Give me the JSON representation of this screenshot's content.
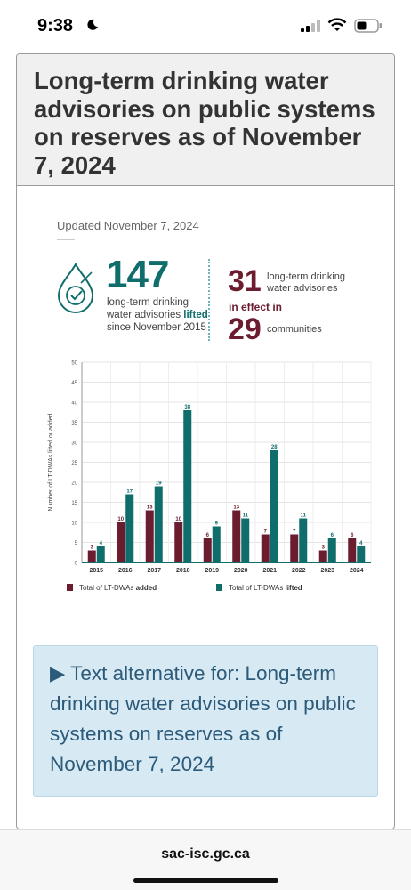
{
  "status": {
    "time": "9:38"
  },
  "card": {
    "title": "Long-term drinking water advisories on public systems on reserves as of November 7, 2024",
    "updated": "Updated November 7, 2024"
  },
  "stats": {
    "lifted_number": "147",
    "lifted_desc_1": "long-term drinking water advisories",
    "lifted_word": "lifted",
    "lifted_desc_2": "since November 2015",
    "effect_number": "31",
    "effect_desc": "long-term drinking water advisories",
    "in_effect": "in effect in",
    "communities_number": "29",
    "communities_word": "communities"
  },
  "chart_data": {
    "type": "bar",
    "ylabel": "Number of LT-DWAs lifted or added",
    "ylim": [
      0,
      50
    ],
    "yticks": [
      0,
      5,
      10,
      15,
      20,
      25,
      30,
      35,
      40,
      45,
      50
    ],
    "categories": [
      "2015",
      "2016",
      "2017",
      "2018",
      "2019",
      "2020",
      "2021",
      "2022",
      "2023",
      "2024"
    ],
    "series": [
      {
        "name": "Total of LT-DWAs added",
        "legend_prefix": "Total of LT-DWAs ",
        "legend_bold": "added",
        "color": "#6b1d2f",
        "values": [
          3,
          10,
          13,
          10,
          6,
          13,
          7,
          7,
          3,
          6
        ]
      },
      {
        "name": "Total of LT-DWAs lifted",
        "legend_prefix": "Total of LT-DWAs ",
        "legend_bold": "lifted",
        "color": "#0f6e6c",
        "values": [
          4,
          17,
          19,
          38,
          9,
          11,
          28,
          11,
          6,
          4
        ]
      }
    ]
  },
  "text_alternative": {
    "label": "▶ Text alternative for: Long-term drinking water advisories on public systems on reserves as of November 7, 2024"
  },
  "browser": {
    "url": "sac-isc.gc.ca"
  },
  "colors": {
    "added": "#6b1d2f",
    "lifted": "#0f6e6c",
    "textalt_bg": "#d7eaf3"
  }
}
